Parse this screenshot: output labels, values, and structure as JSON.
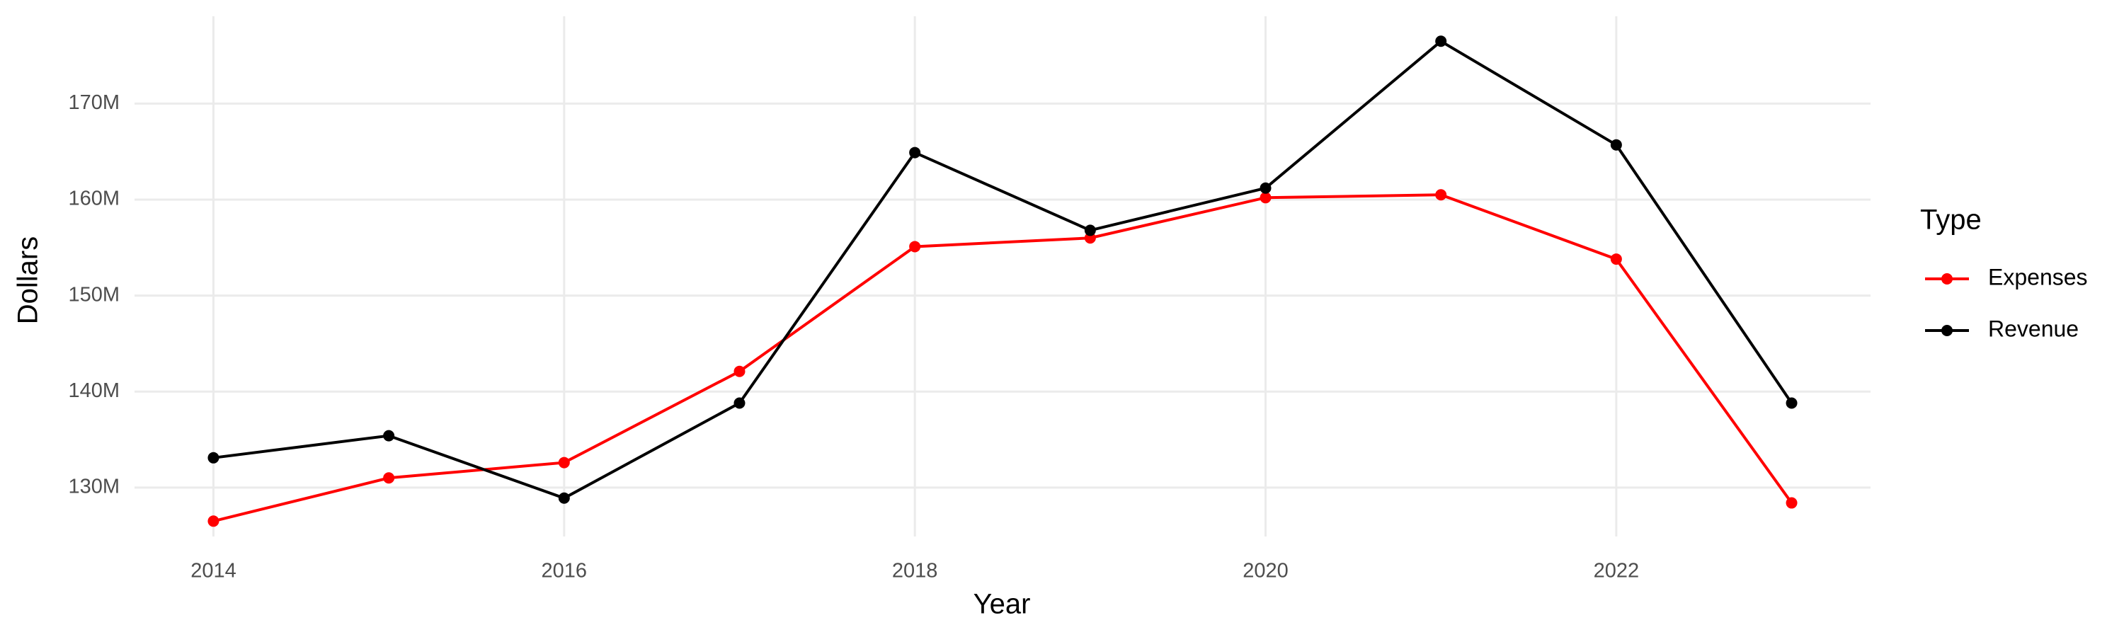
{
  "chart_data": {
    "type": "line",
    "x_label": "Year",
    "y_label": "Dollars",
    "legend_title": "Type",
    "x": [
      2014,
      2015,
      2016,
      2017,
      2018,
      2019,
      2020,
      2021,
      2022,
      2023
    ],
    "series": [
      {
        "name": "Expenses",
        "color": "#ff0000",
        "values": [
          126500000,
          131000000,
          132600000,
          142100000,
          155100000,
          156000000,
          160200000,
          160500000,
          153800000,
          128400000
        ]
      },
      {
        "name": "Revenue",
        "color": "#000000",
        "values": [
          133100000,
          135400000,
          128900000,
          138800000,
          164900000,
          156800000,
          161200000,
          176500000,
          165700000,
          138800000
        ]
      }
    ],
    "xlim": [
      2013.55,
      2023.45
    ],
    "xticks": [
      2014,
      2016,
      2018,
      2020,
      2022
    ],
    "ylim": [
      124900000,
      179100000
    ],
    "yticks": [
      {
        "value": 130000000,
        "label": "130M"
      },
      {
        "value": 140000000,
        "label": "140M"
      },
      {
        "value": 150000000,
        "label": "150M"
      },
      {
        "value": 160000000,
        "label": "160M"
      },
      {
        "value": 170000000,
        "label": "170M"
      }
    ],
    "grid": true,
    "legend": "right"
  }
}
